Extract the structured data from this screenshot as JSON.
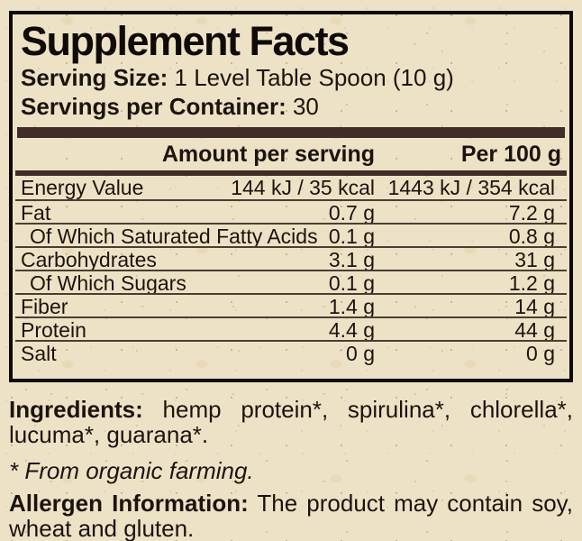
{
  "panel": {
    "title": "Supplement Facts",
    "serving_size": {
      "label": "Serving Size:",
      "value": "1 Level Table Spoon (10 g)"
    },
    "servings": {
      "label": "Servings per Container:",
      "value": "30"
    },
    "table": {
      "amount_header": "Amount per serving",
      "per100_header": "Per 100 g",
      "rows": [
        {
          "name": "Energy Value",
          "per_serving": "144 kJ / 35 kcal",
          "per_100g": "1443 kJ / 354 kcal",
          "indent": false
        },
        {
          "name": "Fat",
          "per_serving": "0.7 g",
          "per_100g": "7.2 g",
          "indent": false
        },
        {
          "name": "Of Which Saturated Fatty Acids",
          "per_serving": "0.1 g",
          "per_100g": "0.8 g",
          "indent": true
        },
        {
          "name": "Carbohydrates",
          "per_serving": "3.1 g",
          "per_100g": "31 g",
          "indent": false
        },
        {
          "name": "Of Which Sugars",
          "per_serving": "0.1 g",
          "per_100g": "1.2 g",
          "indent": true
        },
        {
          "name": "Fiber",
          "per_serving": "1.4 g",
          "per_100g": "14 g",
          "indent": false
        },
        {
          "name": "Protein",
          "per_serving": "4.4 g",
          "per_100g": "44 g",
          "indent": false
        },
        {
          "name": "Salt",
          "per_serving": "0 g",
          "per_100g": "0 g",
          "indent": false
        }
      ]
    }
  },
  "ingredients": {
    "label": "Ingredients:",
    "text": "hemp protein*, spirulina*, chlorella*, lucuma*, guarana*.",
    "footnote": "* From organic farming."
  },
  "allergen": {
    "label": "Allergen Information:",
    "text": "The product may contain soy, wheat and gluten."
  },
  "colors": {
    "paper": "#eee2c6",
    "bar_brown": "#402d27",
    "separator_brown": "#4c3d34",
    "frame_black": "#0e0a07",
    "text": "#1b140e"
  }
}
